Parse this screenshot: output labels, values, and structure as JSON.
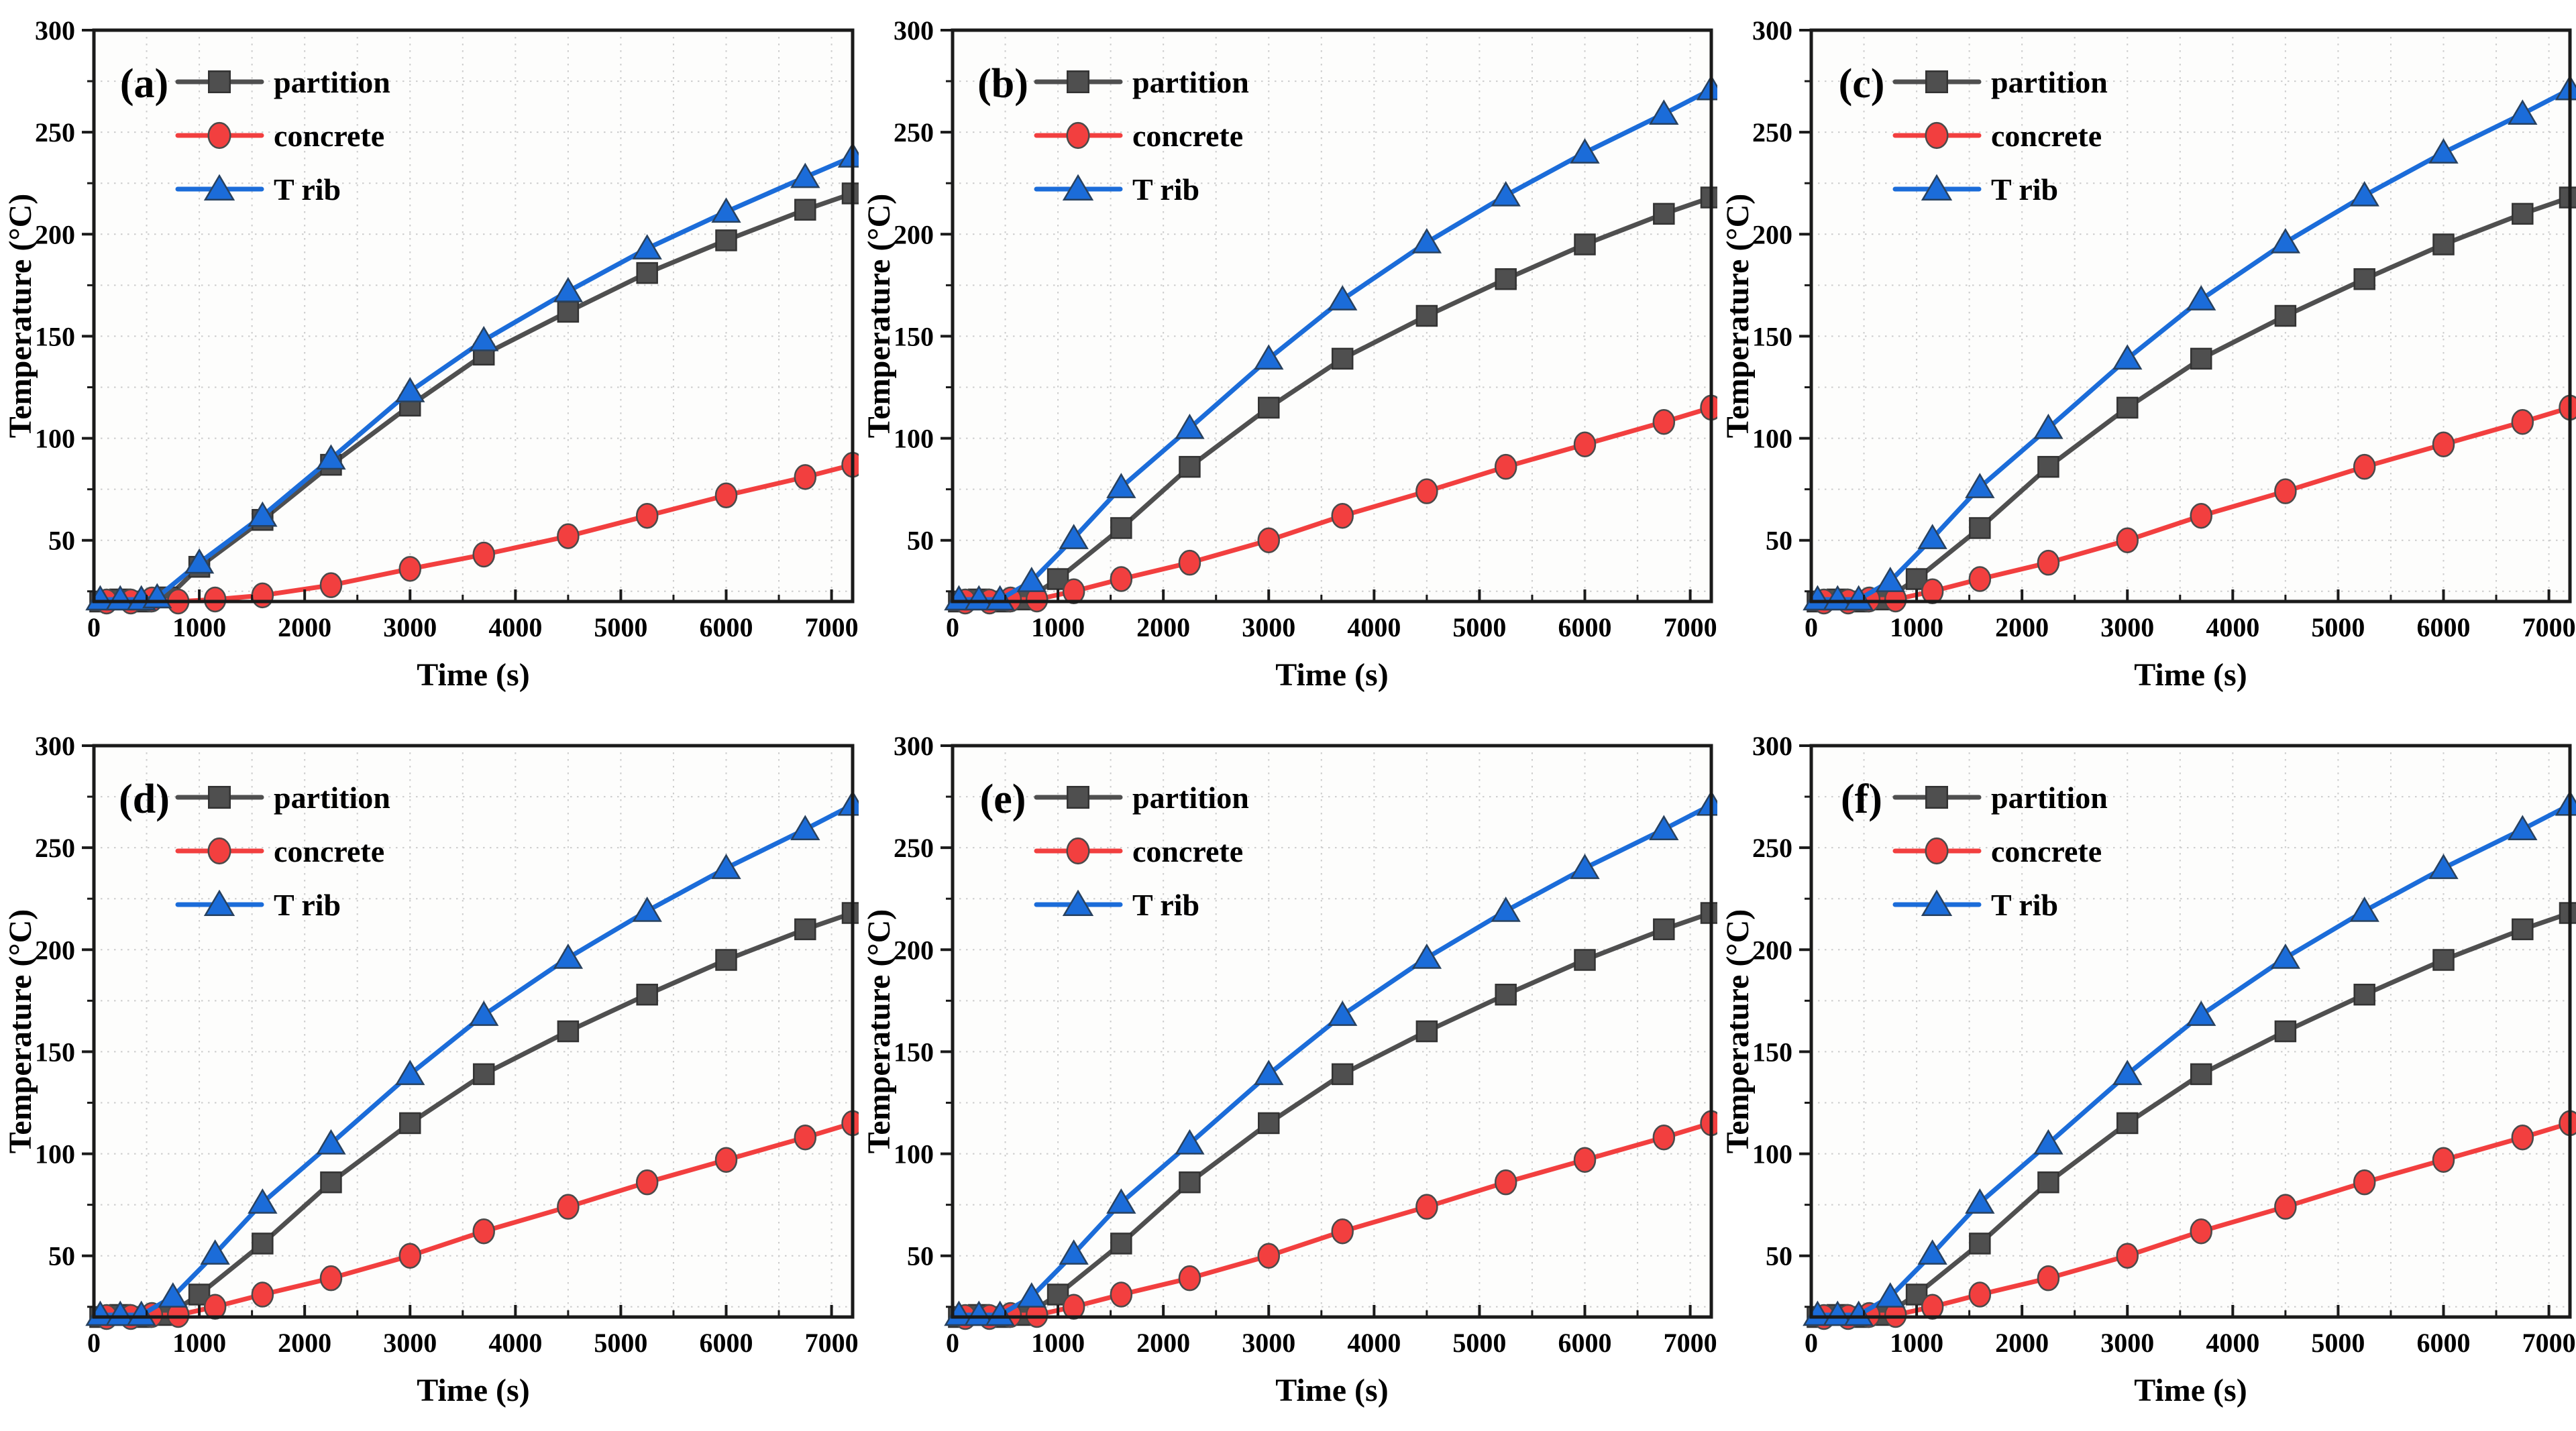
{
  "figure": {
    "layout": {
      "rows": 2,
      "cols": 3
    },
    "background": "#ffffff",
    "panel_labels": [
      "(a)",
      "(b)",
      "(c)",
      "(d)",
      "(e)",
      "(f)"
    ]
  },
  "style": {
    "axis_color": "#1a1a1a",
    "grid_color": "#cccccc",
    "tick_label_size": 40,
    "axis_label_size": 48,
    "legend_label_size": 46,
    "panel_label_size": 62
  },
  "chart_data": [
    {
      "type": "line",
      "panel_label": "(a)",
      "xlabel": "Time (s)",
      "ylabel": "Temperature (°C)",
      "xlim": [
        0,
        7200
      ],
      "ylim": [
        20,
        300
      ],
      "xticks": [
        0,
        1000,
        2000,
        3000,
        4000,
        5000,
        6000,
        7000
      ],
      "yticks": [
        50,
        100,
        150,
        200,
        250,
        300
      ],
      "x_minor_step": 500,
      "y_minor_step": 25,
      "grid": "dotted",
      "legend_position": "top-left",
      "series": [
        {
          "name": "partition",
          "color": "#4F4F4F",
          "marker": "square",
          "x": [
            60,
            250,
            450,
            700,
            1000,
            1600,
            2250,
            3000,
            3700,
            4500,
            5250,
            6000,
            6750,
            7200
          ],
          "y": [
            20,
            21,
            20,
            22,
            37,
            60,
            87,
            116,
            141,
            162,
            181,
            197,
            212,
            220
          ]
        },
        {
          "name": "concrete",
          "color": "#F23F3F",
          "marker": "circle",
          "x": [
            120,
            350,
            550,
            800,
            1150,
            1600,
            2250,
            3000,
            3700,
            4500,
            5250,
            6000,
            6750,
            7200
          ],
          "y": [
            20,
            20,
            21,
            20,
            21,
            23,
            28,
            36,
            43,
            52,
            62,
            72,
            81,
            87
          ]
        },
        {
          "name": "T rib",
          "color": "#1B6CD9",
          "marker": "triangle",
          "x": [
            60,
            250,
            450,
            600,
            1000,
            1600,
            2250,
            3000,
            3700,
            4500,
            5250,
            6000,
            6750,
            7200
          ],
          "y": [
            21,
            21,
            21,
            22,
            39,
            62,
            90,
            123,
            148,
            172,
            193,
            211,
            228,
            238
          ]
        }
      ]
    },
    {
      "type": "line",
      "panel_label": "(b)",
      "xlabel": "Time (s)",
      "ylabel": "Temperature (°C)",
      "xlim": [
        0,
        7200
      ],
      "ylim": [
        20,
        300
      ],
      "xticks": [
        0,
        1000,
        2000,
        3000,
        4000,
        5000,
        6000,
        7000
      ],
      "yticks": [
        50,
        100,
        150,
        200,
        250,
        300
      ],
      "x_minor_step": 500,
      "y_minor_step": 25,
      "grid": "dotted",
      "legend_position": "top-left",
      "series": [
        {
          "name": "partition",
          "color": "#4F4F4F",
          "marker": "square",
          "x": [
            60,
            250,
            450,
            700,
            1000,
            1600,
            2250,
            3000,
            3700,
            4500,
            5250,
            6000,
            6750,
            7200
          ],
          "y": [
            20,
            21,
            20,
            21,
            31,
            56,
            86,
            115,
            139,
            160,
            178,
            195,
            210,
            218
          ]
        },
        {
          "name": "concrete",
          "color": "#F23F3F",
          "marker": "circle",
          "x": [
            120,
            350,
            550,
            800,
            1150,
            1600,
            2250,
            3000,
            3700,
            4500,
            5250,
            6000,
            6750,
            7200
          ],
          "y": [
            20,
            20,
            21,
            21,
            25,
            31,
            39,
            50,
            62,
            74,
            86,
            97,
            108,
            115
          ]
        },
        {
          "name": "T rib",
          "color": "#1B6CD9",
          "marker": "triangle",
          "x": [
            60,
            250,
            450,
            750,
            1150,
            1600,
            2250,
            3000,
            3700,
            4500,
            5250,
            6000,
            6750,
            7200
          ],
          "y": [
            21,
            21,
            21,
            30,
            51,
            76,
            105,
            139,
            168,
            196,
            219,
            240,
            259,
            271
          ]
        }
      ]
    },
    {
      "type": "line",
      "panel_label": "(c)",
      "xlabel": "Time (s)",
      "ylabel": "Temperature (°C)",
      "xlim": [
        0,
        7200
      ],
      "ylim": [
        20,
        300
      ],
      "xticks": [
        0,
        1000,
        2000,
        3000,
        4000,
        5000,
        6000,
        7000
      ],
      "yticks": [
        50,
        100,
        150,
        200,
        250,
        300
      ],
      "x_minor_step": 500,
      "y_minor_step": 25,
      "grid": "dotted",
      "legend_position": "top-left",
      "series": [
        {
          "name": "partition",
          "color": "#4F4F4F",
          "marker": "square",
          "x": [
            60,
            250,
            450,
            700,
            1000,
            1600,
            2250,
            3000,
            3700,
            4500,
            5250,
            6000,
            6750,
            7200
          ],
          "y": [
            20,
            21,
            20,
            21,
            31,
            56,
            86,
            115,
            139,
            160,
            178,
            195,
            210,
            218
          ]
        },
        {
          "name": "concrete",
          "color": "#F23F3F",
          "marker": "circle",
          "x": [
            120,
            350,
            550,
            800,
            1150,
            1600,
            2250,
            3000,
            3700,
            4500,
            5250,
            6000,
            6750,
            7200
          ],
          "y": [
            20,
            20,
            21,
            21,
            25,
            31,
            39,
            50,
            62,
            74,
            86,
            97,
            108,
            115
          ]
        },
        {
          "name": "T rib",
          "color": "#1B6CD9",
          "marker": "triangle",
          "x": [
            60,
            250,
            450,
            750,
            1150,
            1600,
            2250,
            3000,
            3700,
            4500,
            5250,
            6000,
            6750,
            7200
          ],
          "y": [
            21,
            21,
            21,
            30,
            51,
            76,
            105,
            139,
            168,
            196,
            219,
            240,
            259,
            271
          ]
        }
      ]
    },
    {
      "type": "line",
      "panel_label": "(d)",
      "xlabel": "Time (s)",
      "ylabel": "Temperature (°C)",
      "xlim": [
        0,
        7200
      ],
      "ylim": [
        20,
        300
      ],
      "xticks": [
        0,
        1000,
        2000,
        3000,
        4000,
        5000,
        6000,
        7000
      ],
      "yticks": [
        50,
        100,
        150,
        200,
        250,
        300
      ],
      "x_minor_step": 500,
      "y_minor_step": 25,
      "grid": "dotted",
      "legend_position": "top-left",
      "series": [
        {
          "name": "partition",
          "color": "#4F4F4F",
          "marker": "square",
          "x": [
            60,
            250,
            450,
            700,
            1000,
            1600,
            2250,
            3000,
            3700,
            4500,
            5250,
            6000,
            6750,
            7200
          ],
          "y": [
            20,
            21,
            20,
            21,
            31,
            56,
            86,
            115,
            139,
            160,
            178,
            195,
            210,
            218
          ]
        },
        {
          "name": "concrete",
          "color": "#F23F3F",
          "marker": "circle",
          "x": [
            120,
            350,
            550,
            800,
            1150,
            1600,
            2250,
            3000,
            3700,
            4500,
            5250,
            6000,
            6750,
            7200
          ],
          "y": [
            20,
            20,
            21,
            21,
            25,
            31,
            39,
            50,
            62,
            74,
            86,
            97,
            108,
            115
          ]
        },
        {
          "name": "T rib",
          "color": "#1B6CD9",
          "marker": "triangle",
          "x": [
            60,
            250,
            450,
            750,
            1150,
            1600,
            2250,
            3000,
            3700,
            4500,
            5250,
            6000,
            6750,
            7200
          ],
          "y": [
            21,
            21,
            21,
            30,
            51,
            76,
            105,
            139,
            168,
            196,
            219,
            240,
            259,
            271
          ]
        }
      ]
    },
    {
      "type": "line",
      "panel_label": "(e)",
      "xlabel": "Time (s)",
      "ylabel": "Temperature (°C)",
      "xlim": [
        0,
        7200
      ],
      "ylim": [
        20,
        300
      ],
      "xticks": [
        0,
        1000,
        2000,
        3000,
        4000,
        5000,
        6000,
        7000
      ],
      "yticks": [
        50,
        100,
        150,
        200,
        250,
        300
      ],
      "x_minor_step": 500,
      "y_minor_step": 25,
      "grid": "dotted",
      "legend_position": "top-left",
      "series": [
        {
          "name": "partition",
          "color": "#4F4F4F",
          "marker": "square",
          "x": [
            60,
            250,
            450,
            700,
            1000,
            1600,
            2250,
            3000,
            3700,
            4500,
            5250,
            6000,
            6750,
            7200
          ],
          "y": [
            20,
            21,
            20,
            21,
            31,
            56,
            86,
            115,
            139,
            160,
            178,
            195,
            210,
            218
          ]
        },
        {
          "name": "concrete",
          "color": "#F23F3F",
          "marker": "circle",
          "x": [
            120,
            350,
            550,
            800,
            1150,
            1600,
            2250,
            3000,
            3700,
            4500,
            5250,
            6000,
            6750,
            7200
          ],
          "y": [
            20,
            20,
            21,
            21,
            25,
            31,
            39,
            50,
            62,
            74,
            86,
            97,
            108,
            115
          ]
        },
        {
          "name": "T rib",
          "color": "#1B6CD9",
          "marker": "triangle",
          "x": [
            60,
            250,
            450,
            750,
            1150,
            1600,
            2250,
            3000,
            3700,
            4500,
            5250,
            6000,
            6750,
            7200
          ],
          "y": [
            21,
            21,
            21,
            30,
            51,
            76,
            105,
            139,
            168,
            196,
            219,
            240,
            259,
            271
          ]
        }
      ]
    },
    {
      "type": "line",
      "panel_label": "(f)",
      "xlabel": "Time (s)",
      "ylabel": "Temperature (°C)",
      "xlim": [
        0,
        7200
      ],
      "ylim": [
        20,
        300
      ],
      "xticks": [
        0,
        1000,
        2000,
        3000,
        4000,
        5000,
        6000,
        7000
      ],
      "yticks": [
        50,
        100,
        150,
        200,
        250,
        300
      ],
      "x_minor_step": 500,
      "y_minor_step": 25,
      "grid": "dotted",
      "legend_position": "top-left",
      "series": [
        {
          "name": "partition",
          "color": "#4F4F4F",
          "marker": "square",
          "x": [
            60,
            250,
            450,
            700,
            1000,
            1600,
            2250,
            3000,
            3700,
            4500,
            5250,
            6000,
            6750,
            7200
          ],
          "y": [
            20,
            21,
            20,
            21,
            31,
            56,
            86,
            115,
            139,
            160,
            178,
            195,
            210,
            218
          ]
        },
        {
          "name": "concrete",
          "color": "#F23F3F",
          "marker": "circle",
          "x": [
            120,
            350,
            550,
            800,
            1150,
            1600,
            2250,
            3000,
            3700,
            4500,
            5250,
            6000,
            6750,
            7200
          ],
          "y": [
            20,
            20,
            21,
            21,
            25,
            31,
            39,
            50,
            62,
            74,
            86,
            97,
            108,
            115
          ]
        },
        {
          "name": "T rib",
          "color": "#1B6CD9",
          "marker": "triangle",
          "x": [
            60,
            250,
            450,
            750,
            1150,
            1600,
            2250,
            3000,
            3700,
            4500,
            5250,
            6000,
            6750,
            7200
          ],
          "y": [
            21,
            21,
            21,
            30,
            51,
            76,
            105,
            139,
            168,
            196,
            219,
            240,
            259,
            271
          ]
        }
      ]
    }
  ]
}
